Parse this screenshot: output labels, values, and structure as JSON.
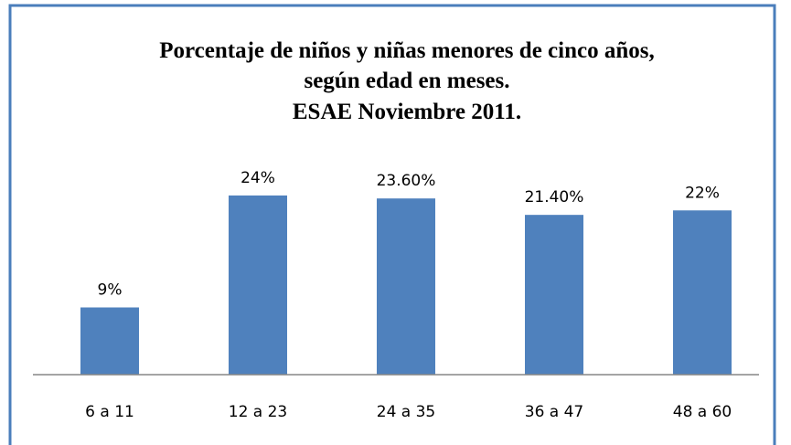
{
  "chart_data": {
    "type": "bar",
    "title": [
      "Porcentaje  de niños y niñas menores de cinco años,",
      "según edad en meses.",
      "ESAE Noviembre 2011."
    ],
    "categories": [
      "6 a 11",
      "12 a 23",
      "24 a 35",
      "36 a 47",
      "48 a 60"
    ],
    "values": [
      9,
      24,
      23.6,
      21.4,
      22
    ],
    "value_labels": [
      "9%",
      "24%",
      "23.60%",
      "21.40%",
      "22%"
    ],
    "color": "#4f81bd"
  }
}
